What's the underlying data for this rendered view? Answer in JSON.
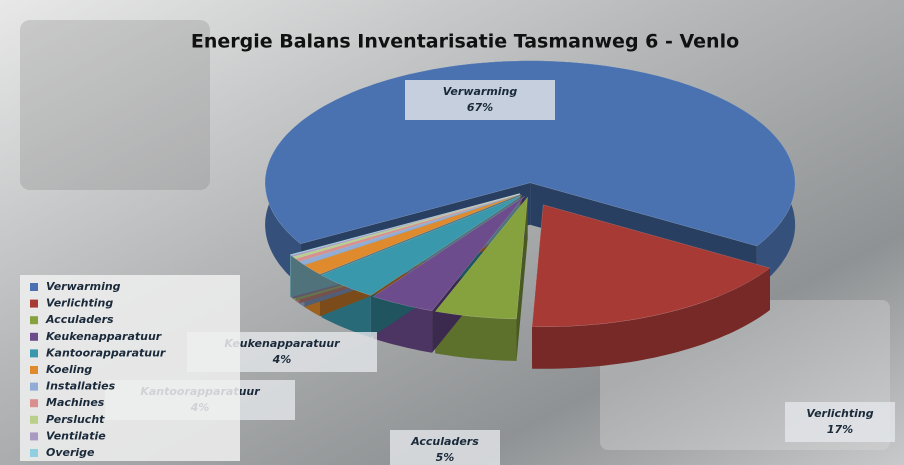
{
  "chart_data": {
    "type": "pie3d",
    "title": "Energie Balans Inventarisatie Tasmanweg 6 - Venlo",
    "categories": [
      "Verwarming",
      "Verlichting",
      "Acculaders",
      "Keukenapparatuur",
      "Kantoorapparatuur",
      "Koeling",
      "Installaties",
      "Machines",
      "Perslucht",
      "Ventilatie",
      "Overige"
    ],
    "values": [
      67,
      17,
      5,
      4,
      4,
      1.5,
      0.5,
      0.4,
      0.3,
      0.2,
      0.1
    ],
    "value_labels": [
      "67%",
      "17%",
      "5%",
      "4%",
      "4%",
      null,
      null,
      null,
      null,
      null,
      null
    ],
    "colors": [
      "#4a72b0",
      "#a83a36",
      "#86a23f",
      "#6d4c8e",
      "#3a98ad",
      "#e08a2e",
      "#91acd6",
      "#d98f8d",
      "#b9d08a",
      "#a99ac4",
      "#8fcfdf"
    ],
    "legend": "bottom-left"
  }
}
